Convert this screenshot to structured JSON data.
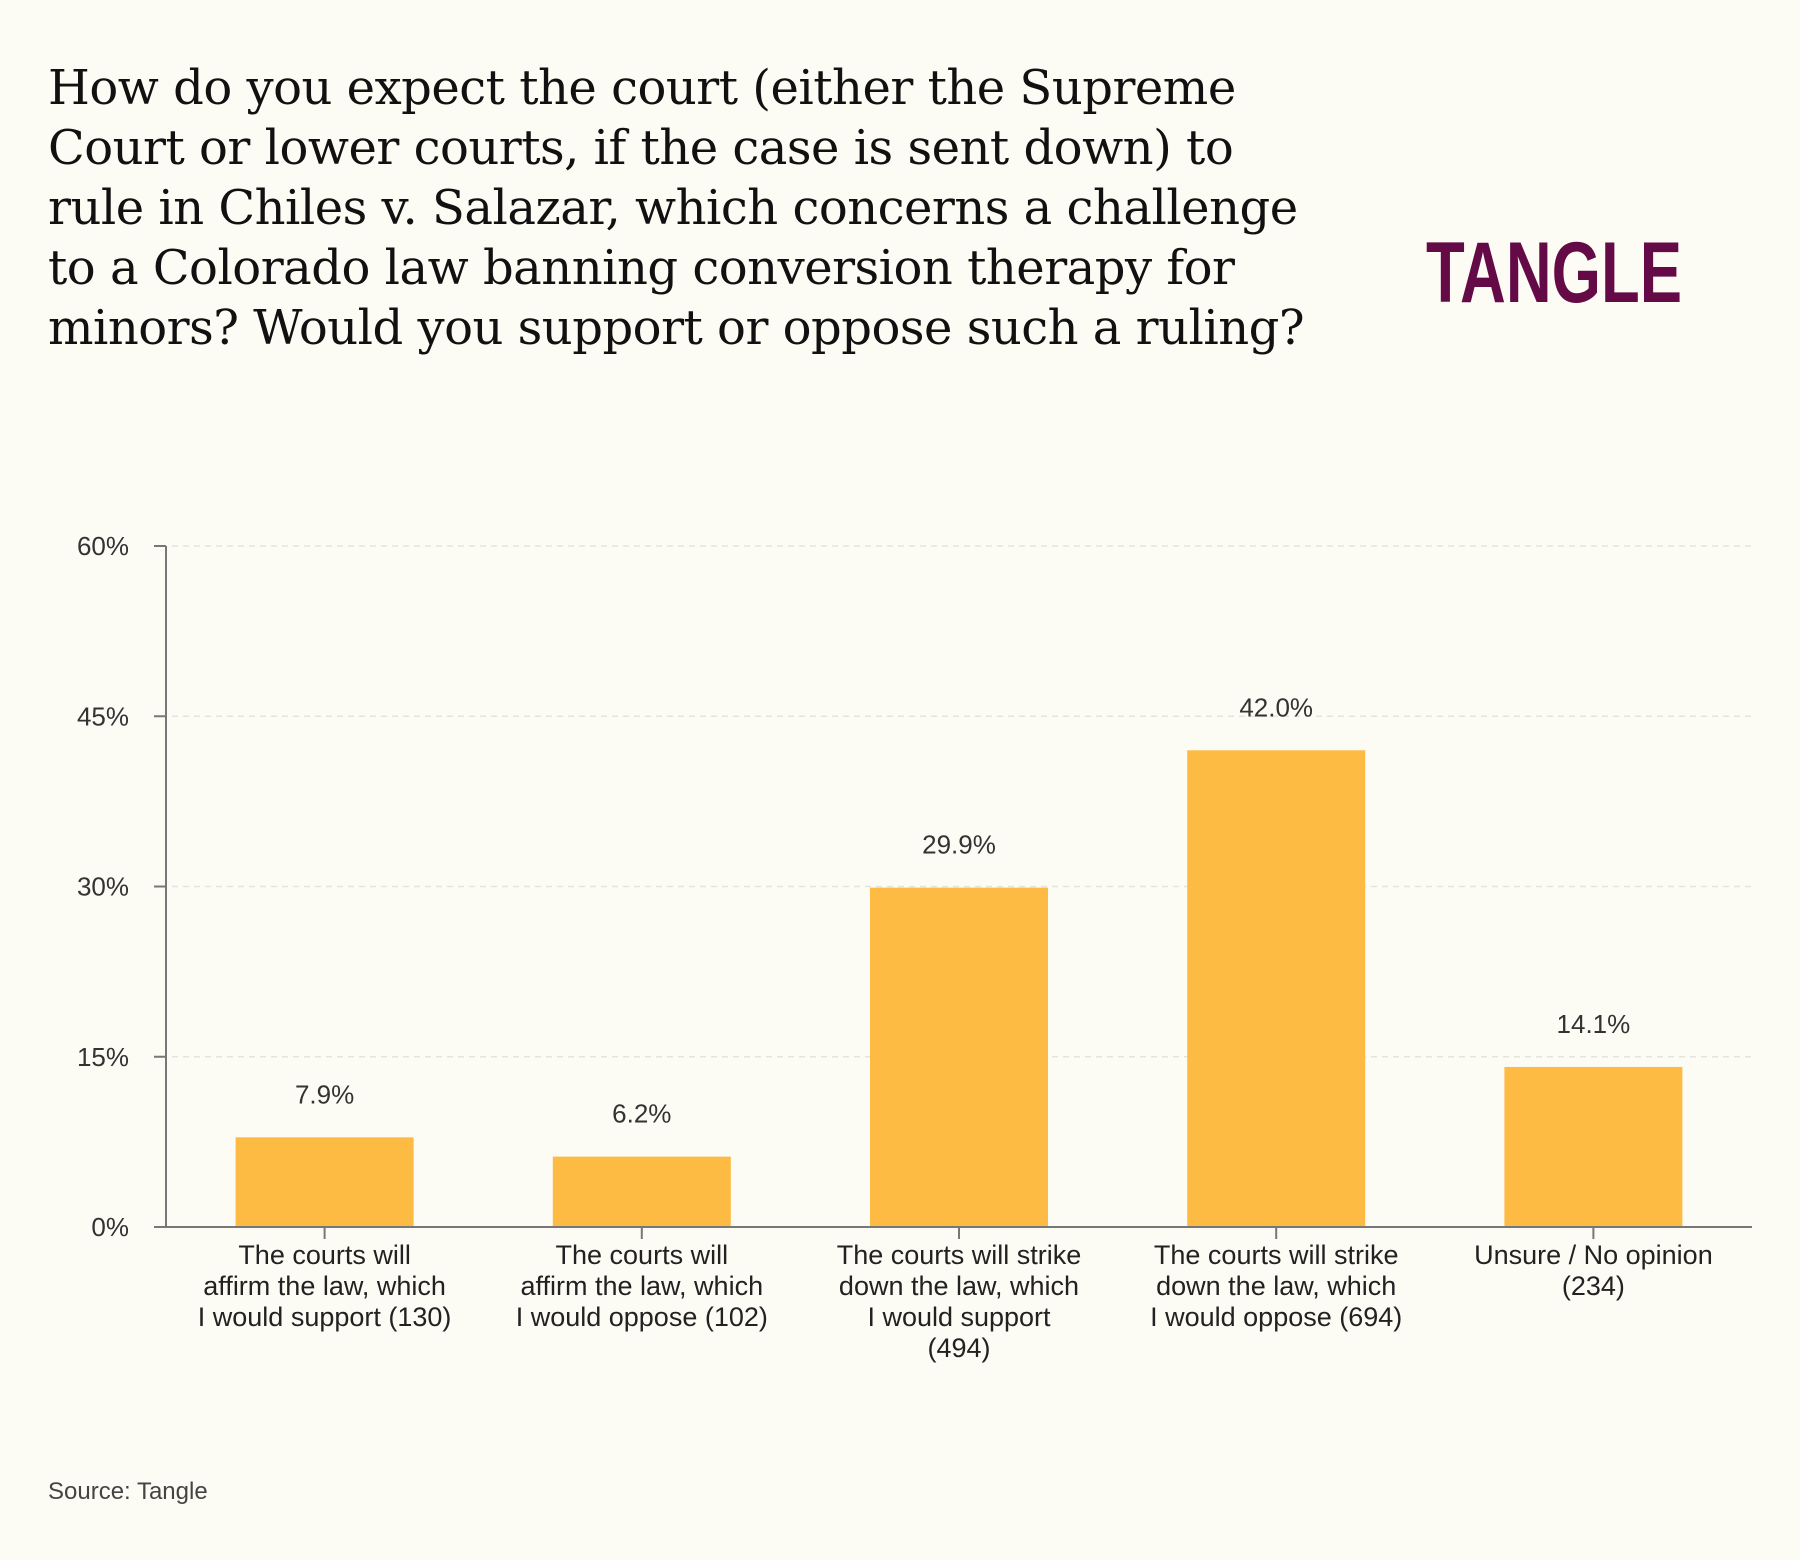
{
  "header": {
    "title": "How do you expect the court (either the Supreme Court or lower courts, if the case is sent down) to rule in Chiles v. Salazar, which concerns a challenge to a Colorado law banning conversion therapy for minors? Would you support or oppose such a ruling?"
  },
  "logo": {
    "text": "TANGLE",
    "color": "#640a46"
  },
  "footer": {
    "source": "Source: Tangle"
  },
  "chart_data": {
    "type": "bar",
    "title": "How do you expect the court (either the Supreme Court or lower courts, if the case is sent down) to rule in Chiles v. Salazar, which concerns a challenge to a Colorado law banning conversion therapy for minors? Would you support or oppose such a ruling?",
    "xlabel": "",
    "ylabel": "",
    "ylim": [
      0,
      60
    ],
    "yticks": [
      0,
      15,
      30,
      45,
      60
    ],
    "ytick_labels": [
      "0%",
      "15%",
      "30%",
      "45%",
      "60%"
    ],
    "grid": true,
    "bar_color": "#fdbb44",
    "categories": [
      [
        "The courts will",
        "affirm the law, which",
        "I would support (130)"
      ],
      [
        "The courts will",
        "affirm the law, which",
        "I would oppose (102)"
      ],
      [
        "The courts will strike",
        "down the law, which",
        "I would support",
        "(494)"
      ],
      [
        "The courts will strike",
        "down the law, which",
        "I would oppose (694)"
      ],
      [
        "Unsure / No opinion",
        "(234)"
      ]
    ],
    "values": [
      7.9,
      6.2,
      29.9,
      42.0,
      14.1
    ],
    "value_labels": [
      "7.9%",
      "6.2%",
      "29.9%",
      "42.0%",
      "14.1%"
    ]
  }
}
